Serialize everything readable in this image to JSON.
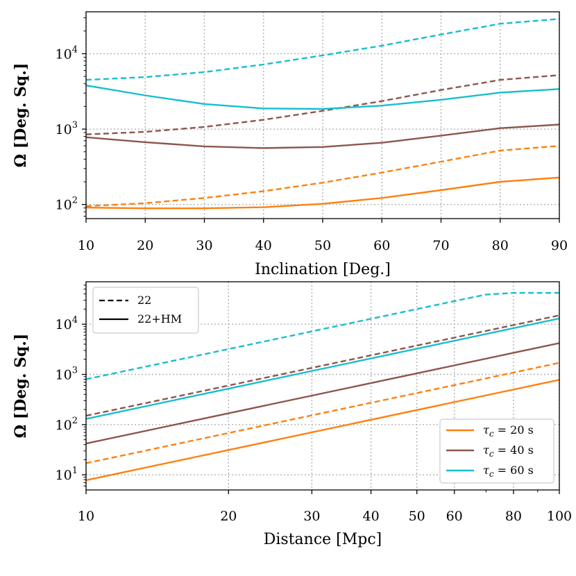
{
  "chart_data": [
    {
      "type": "line",
      "title": "",
      "xlabel": "Inclination [Deg.]",
      "ylabel": "Ω [Deg. Sq.]",
      "xscale": "linear",
      "yscale": "log",
      "xlim": [
        10,
        90
      ],
      "ylim": [
        65,
        36000
      ],
      "xticks": [
        10,
        20,
        30,
        40,
        50,
        60,
        70,
        80,
        90
      ],
      "xtick_labels": [
        "10",
        "20",
        "30",
        "40",
        "50",
        "60",
        "70",
        "80",
        "90"
      ],
      "yticks": [
        100,
        1000,
        10000
      ],
      "ytick_labels": [
        {
          "base": "10",
          "exp": "2"
        },
        {
          "base": "10",
          "exp": "3"
        },
        {
          "base": "10",
          "exp": "4"
        }
      ],
      "grid": true,
      "x": [
        10,
        20,
        30,
        40,
        50,
        60,
        70,
        80,
        90
      ],
      "series": [
        {
          "key": "20s-22",
          "color": "#ff7f0e",
          "dash": true,
          "values": [
            95,
            104,
            122,
            150,
            195,
            265,
            370,
            520,
            600
          ]
        },
        {
          "key": "20s-22HM",
          "color": "#ff7f0e",
          "dash": false,
          "values": [
            91,
            89,
            89,
            92,
            102,
            122,
            155,
            200,
            228
          ]
        },
        {
          "key": "40s-22",
          "color": "#8c564b",
          "dash": true,
          "values": [
            850,
            920,
            1070,
            1330,
            1750,
            2350,
            3300,
            4500,
            5200
          ]
        },
        {
          "key": "40s-22HM",
          "color": "#8c564b",
          "dash": false,
          "values": [
            780,
            670,
            590,
            560,
            580,
            660,
            820,
            1030,
            1150
          ]
        },
        {
          "key": "60s-22",
          "color": "#17becf",
          "dash": true,
          "values": [
            4500,
            4900,
            5700,
            7200,
            9500,
            12800,
            18000,
            25000,
            29000
          ]
        },
        {
          "key": "60s-22HM",
          "color": "#17becf",
          "dash": false,
          "values": [
            3800,
            2800,
            2150,
            1880,
            1850,
            2050,
            2450,
            3050,
            3400
          ]
        }
      ]
    },
    {
      "type": "line",
      "title": "",
      "xlabel": "Distance [Mpc]",
      "ylabel": "Ω [Deg. Sq.]",
      "xscale": "log",
      "yscale": "log",
      "xlim": [
        10,
        100
      ],
      "ylim": [
        5,
        70000
      ],
      "xticks": [
        10,
        20,
        30,
        40,
        50,
        60,
        80,
        100
      ],
      "xtick_labels": [
        "10",
        "20",
        "30",
        "40",
        "50",
        "60",
        "80",
        "100"
      ],
      "yticks": [
        10,
        100,
        1000,
        10000
      ],
      "ytick_labels": [
        {
          "base": "10",
          "exp": "1"
        },
        {
          "base": "10",
          "exp": "2"
        },
        {
          "base": "10",
          "exp": "3"
        },
        {
          "base": "10",
          "exp": "4"
        }
      ],
      "grid": true,
      "style_legend": {
        "placement": "upper-left",
        "entries": [
          {
            "label": "22",
            "dash": true
          },
          {
            "label": "22+HM",
            "dash": false
          }
        ]
      },
      "color_legend": {
        "placement": "lower-right",
        "entries": [
          {
            "label_prefix": "τ",
            "label_sub": "c",
            "label_suffix": " = 20 s",
            "color": "#ff7f0e"
          },
          {
            "label_prefix": "τ",
            "label_sub": "c",
            "label_suffix": " = 40 s",
            "color": "#8c564b"
          },
          {
            "label_prefix": "τ",
            "label_sub": "c",
            "label_suffix": " = 60 s",
            "color": "#17becf"
          }
        ]
      },
      "series": [
        {
          "key": "20s-22",
          "color": "#ff7f0e",
          "dash": true,
          "x": [
            10,
            100
          ],
          "values": [
            17,
            1700
          ]
        },
        {
          "key": "20s-22HM",
          "color": "#ff7f0e",
          "dash": false,
          "x": [
            10,
            100
          ],
          "values": [
            7.8,
            780
          ]
        },
        {
          "key": "40s-22",
          "color": "#8c564b",
          "dash": true,
          "x": [
            10,
            100
          ],
          "values": [
            150,
            15000
          ]
        },
        {
          "key": "40s-22HM",
          "color": "#8c564b",
          "dash": false,
          "x": [
            10,
            100
          ],
          "values": [
            42,
            4200
          ]
        },
        {
          "key": "60s-22",
          "color": "#17becf",
          "dash": true,
          "x": [
            10,
            20,
            40,
            60,
            70,
            80,
            90,
            100
          ],
          "values": [
            800,
            3200,
            12800,
            28800,
            39000,
            42000,
            42000,
            42000
          ]
        },
        {
          "key": "60s-22HM",
          "color": "#17becf",
          "dash": false,
          "x": [
            10,
            100
          ],
          "values": [
            130,
            13000
          ]
        }
      ]
    }
  ]
}
